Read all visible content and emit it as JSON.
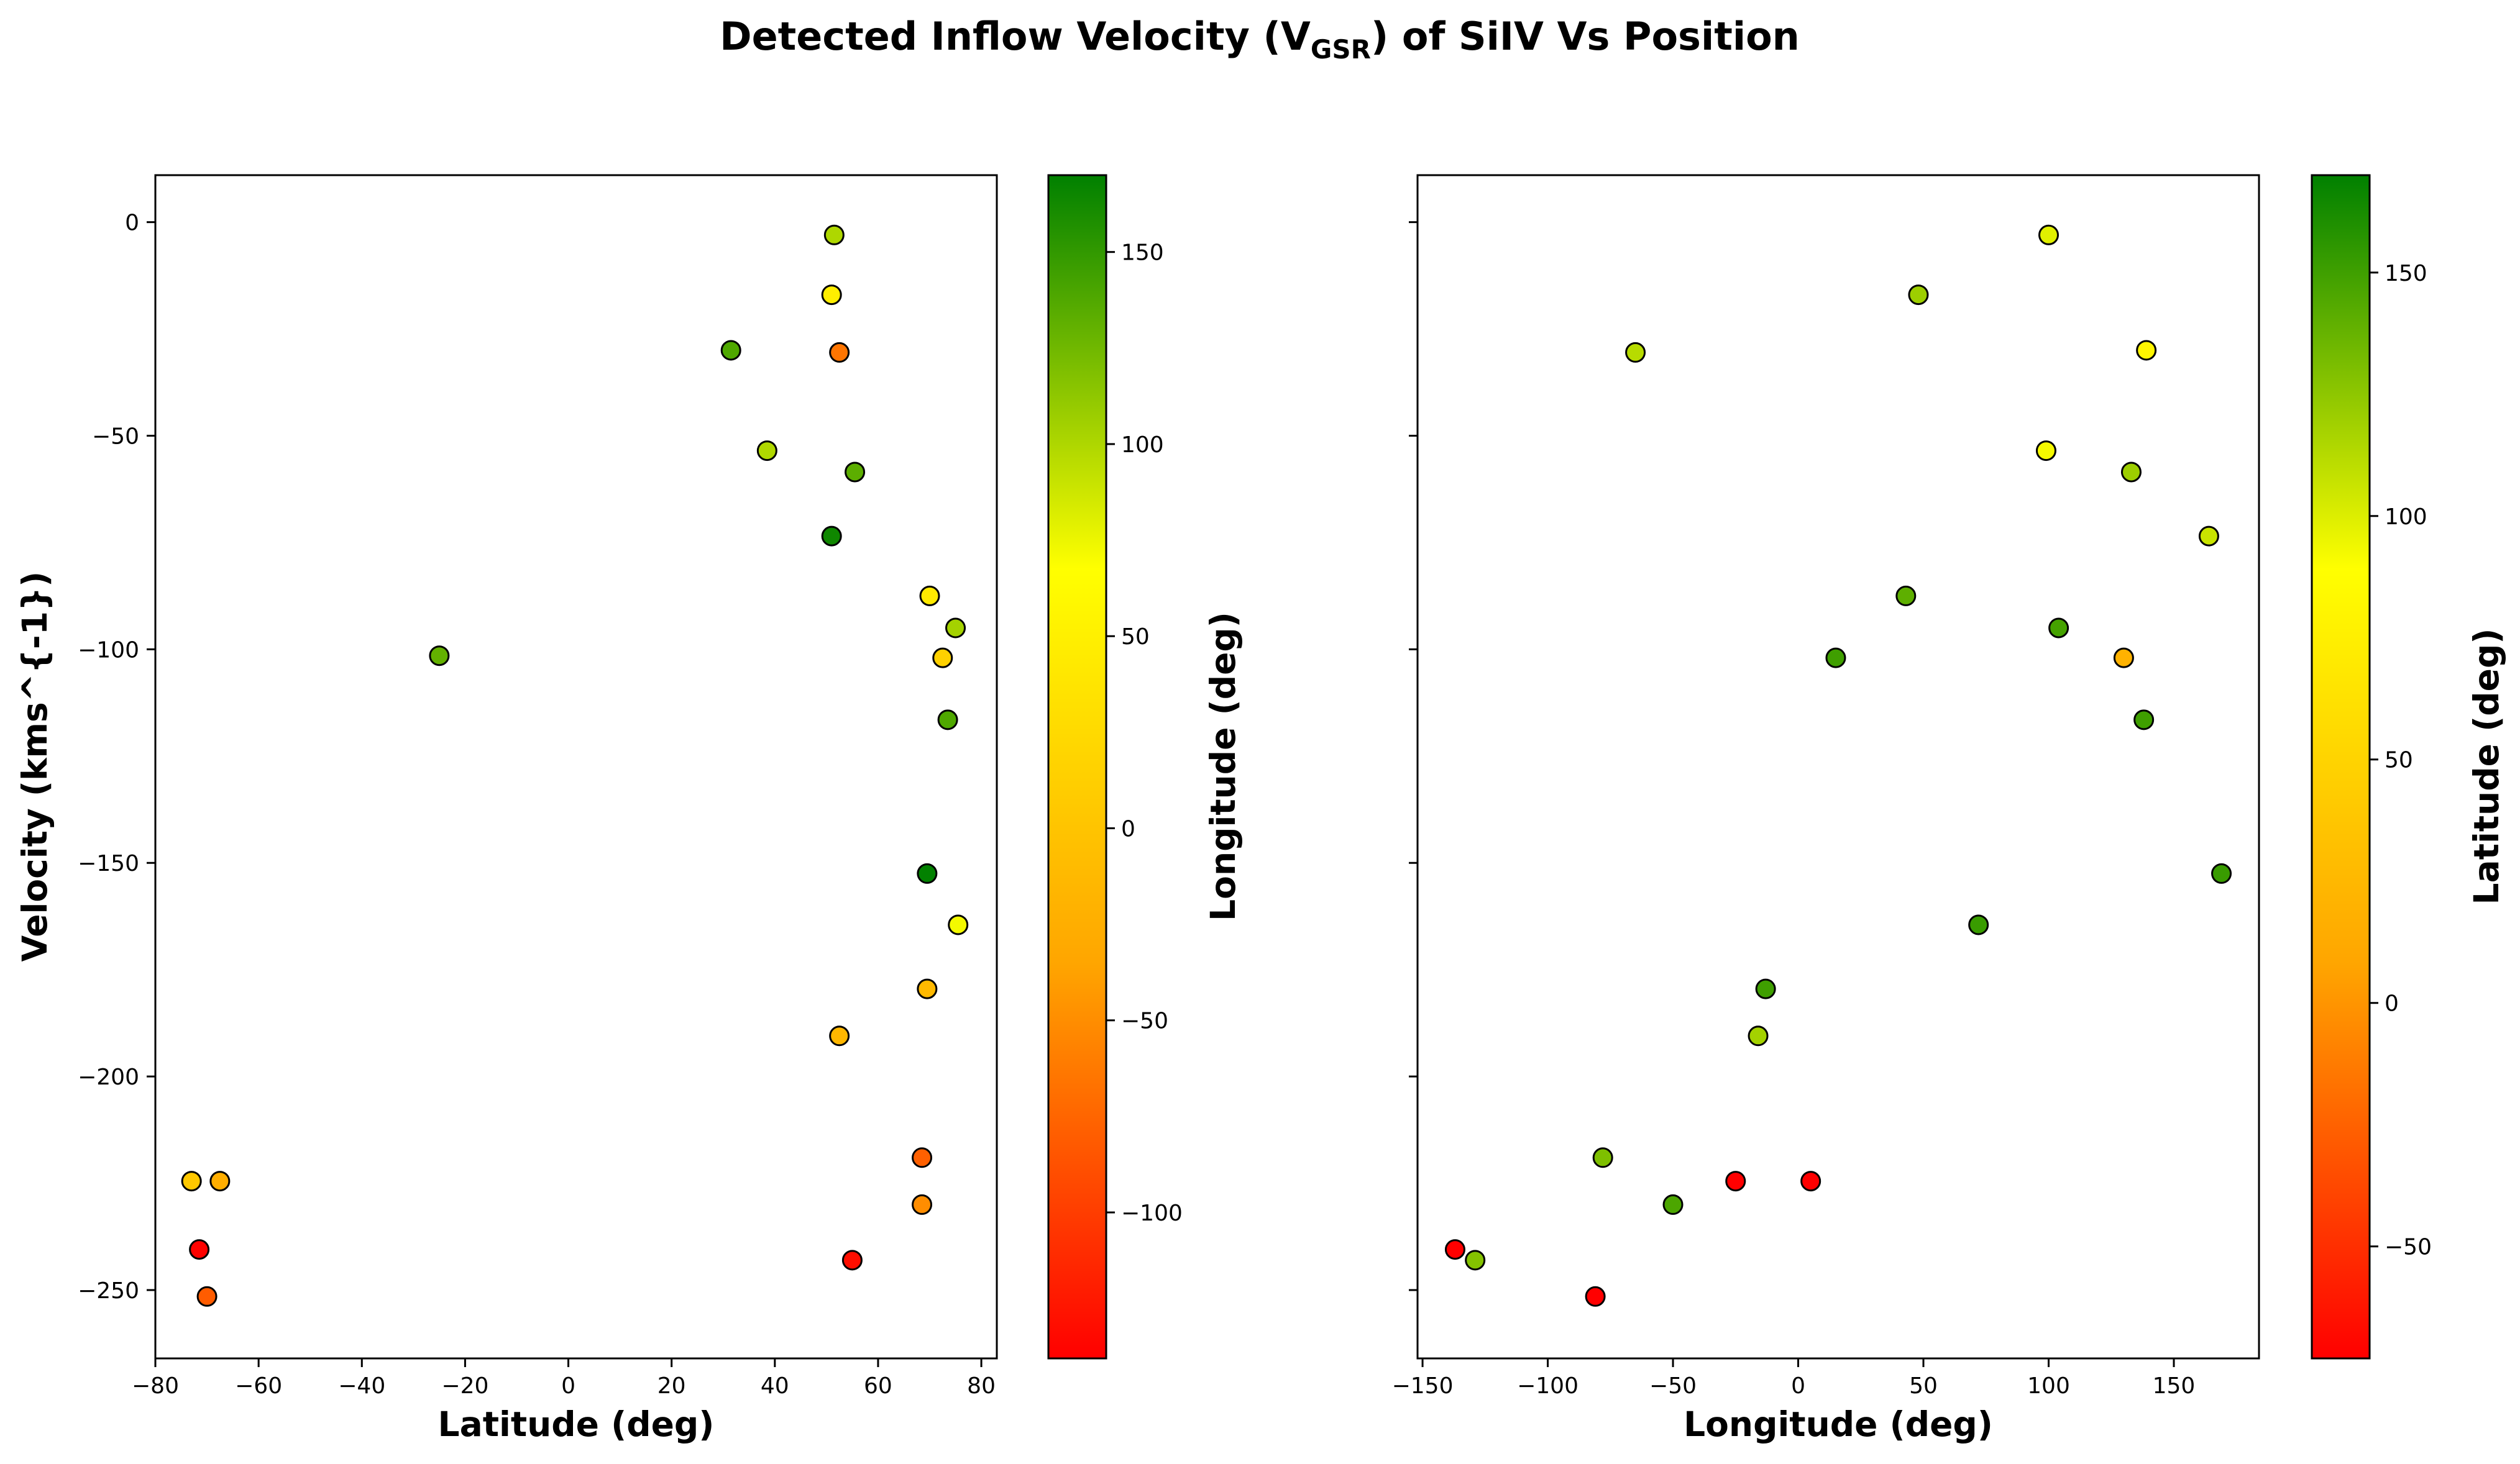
{
  "figure": {
    "title_main": "Detected Inflow Velocity (V",
    "title_sub": "GSR",
    "title_rest": ") of SiIV Vs Position"
  },
  "colors": {
    "colormap": [
      "#ff0000",
      "#ffa500",
      "#ffff00",
      "#008000"
    ],
    "marker_edge": "#000000"
  },
  "chart_data": [
    {
      "type": "scatter",
      "xlabel": "Latitude (deg)",
      "ylabel": "Velocity (kms^{-1})",
      "xlim": [
        -80,
        83
      ],
      "ylim": [
        -266,
        11
      ],
      "xticks": [
        -80,
        -60,
        -40,
        -20,
        0,
        20,
        40,
        60,
        80
      ],
      "yticks": [
        0,
        -50,
        -100,
        -150,
        -200,
        -250
      ],
      "colorbar": {
        "label": "Longitude (deg)",
        "range": [
          -138,
          170
        ],
        "ticks": [
          150,
          100,
          50,
          0,
          -50,
          -100
        ]
      },
      "points": [
        {
          "x": 51.5,
          "y": -3,
          "c": 100
        },
        {
          "x": 51.0,
          "y": -17,
          "c": 48
        },
        {
          "x": 31.5,
          "y": -30,
          "c": 138
        },
        {
          "x": 52.5,
          "y": -30.5,
          "c": -65
        },
        {
          "x": 38.5,
          "y": -53.5,
          "c": 99
        },
        {
          "x": 55.5,
          "y": -58.5,
          "c": 133
        },
        {
          "x": 51.0,
          "y": -73.5,
          "c": 164
        },
        {
          "x": 70.0,
          "y": -87.5,
          "c": 43
        },
        {
          "x": 75.0,
          "y": -95,
          "c": 104
        },
        {
          "x": -25.0,
          "y": -101.5,
          "c": 130
        },
        {
          "x": 72.5,
          "y": -102,
          "c": 15
        },
        {
          "x": 73.5,
          "y": -116.5,
          "c": 138
        },
        {
          "x": 69.5,
          "y": -152.5,
          "c": 169
        },
        {
          "x": 75.5,
          "y": -164.5,
          "c": 72
        },
        {
          "x": 69.5,
          "y": -179.5,
          "c": -12
        },
        {
          "x": 52.5,
          "y": -190.5,
          "c": -15
        },
        {
          "x": 68.5,
          "y": -219,
          "c": -78
        },
        {
          "x": -73.0,
          "y": -224.5,
          "c": 5
        },
        {
          "x": -67.5,
          "y": -224.5,
          "c": -25
        },
        {
          "x": 68.5,
          "y": -230,
          "c": -50
        },
        {
          "x": -71.5,
          "y": -240.5,
          "c": -137
        },
        {
          "x": 55.0,
          "y": -243,
          "c": -129
        },
        {
          "x": -70.0,
          "y": -251.5,
          "c": -81
        }
      ]
    },
    {
      "type": "scatter",
      "xlabel": "Longitude (deg)",
      "ylabel": "",
      "xlim": [
        -152,
        184
      ],
      "ylim": [
        -266,
        11
      ],
      "xticks": [
        -150,
        -100,
        -50,
        0,
        50,
        100,
        150
      ],
      "yticks": [
        0,
        -50,
        -100,
        -150,
        -200,
        -250
      ],
      "colorbar": {
        "label": "Latitude (deg)",
        "range": [
          -73,
          170
        ],
        "ticks": [
          150,
          100,
          50,
          0,
          -50,
          -100
        ]
      },
      "points": [
        {
          "x": 100,
          "y": -3,
          "c": 99
        },
        {
          "x": 48,
          "y": -17,
          "c": 120
        },
        {
          "x": -65,
          "y": -30.5,
          "c": 112
        },
        {
          "x": 139,
          "y": -30,
          "c": 80
        },
        {
          "x": 99,
          "y": -53.5,
          "c": 92
        },
        {
          "x": 133,
          "y": -58.5,
          "c": 120
        },
        {
          "x": 164,
          "y": -73.5,
          "c": 106
        },
        {
          "x": 43,
          "y": -87.5,
          "c": 140
        },
        {
          "x": 104,
          "y": -95,
          "c": 148
        },
        {
          "x": 15,
          "y": -102,
          "c": 150
        },
        {
          "x": 130,
          "y": -102,
          "c": 20
        },
        {
          "x": 138,
          "y": -116.5,
          "c": 150
        },
        {
          "x": 169,
          "y": -152.5,
          "c": 152
        },
        {
          "x": 72,
          "y": -164.5,
          "c": 152
        },
        {
          "x": -13,
          "y": -179.5,
          "c": 150
        },
        {
          "x": -16,
          "y": -190.5,
          "c": 118
        },
        {
          "x": -78,
          "y": -219,
          "c": 130
        },
        {
          "x": -25,
          "y": -224.5,
          "c": -128
        },
        {
          "x": 5,
          "y": -224.5,
          "c": -128
        },
        {
          "x": -50,
          "y": -230,
          "c": 146
        },
        {
          "x": -137,
          "y": -240.5,
          "c": -130
        },
        {
          "x": -129,
          "y": -243,
          "c": 128
        },
        {
          "x": -81,
          "y": -251.5,
          "c": -128
        }
      ]
    }
  ]
}
